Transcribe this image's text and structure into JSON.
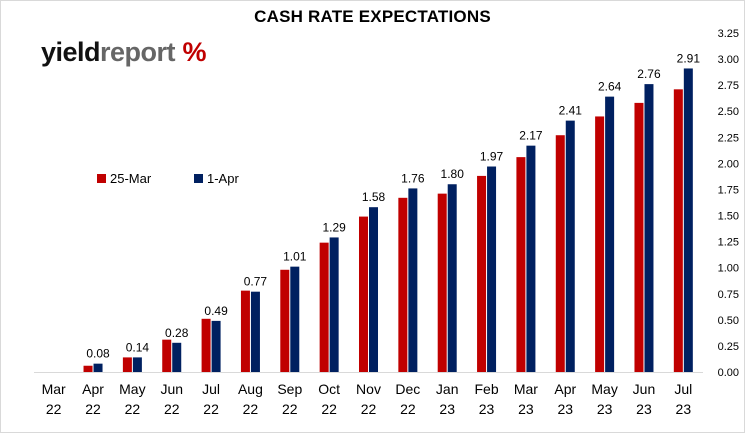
{
  "title": "CASH RATE EXPECTATIONS",
  "logo": {
    "part1": "yield",
    "part2": "report",
    "part3": " %"
  },
  "colors": {
    "series1": "#c00000",
    "series2": "#002060",
    "grid": "#d9d9d9"
  },
  "chart_data": {
    "type": "bar",
    "title": "CASH RATE EXPECTATIONS",
    "categories": [
      [
        "Mar",
        "22"
      ],
      [
        "Apr",
        "22"
      ],
      [
        "May",
        "22"
      ],
      [
        "Jun",
        "22"
      ],
      [
        "Jul",
        "22"
      ],
      [
        "Aug",
        "22"
      ],
      [
        "Sep",
        "22"
      ],
      [
        "Oct",
        "22"
      ],
      [
        "Nov",
        "22"
      ],
      [
        "Dec",
        "22"
      ],
      [
        "Jan",
        "23"
      ],
      [
        "Feb",
        "23"
      ],
      [
        "Mar",
        "23"
      ],
      [
        "Apr",
        "23"
      ],
      [
        "May",
        "23"
      ],
      [
        "Jun",
        "23"
      ],
      [
        "Jul",
        "23"
      ]
    ],
    "series": [
      {
        "name": "25-Mar",
        "values": [
          0.0,
          0.06,
          0.14,
          0.31,
          0.51,
          0.78,
          0.98,
          1.24,
          1.49,
          1.67,
          1.71,
          1.88,
          2.06,
          2.27,
          2.45,
          2.58,
          2.71
        ]
      },
      {
        "name": "1-Apr",
        "values": [
          0.0,
          0.08,
          0.14,
          0.28,
          0.49,
          0.77,
          1.01,
          1.29,
          1.58,
          1.76,
          1.8,
          1.97,
          2.17,
          2.41,
          2.64,
          2.76,
          2.91
        ]
      }
    ],
    "data_labels": [
      "",
      "0.08",
      "0.14",
      "0.28",
      "0.49",
      "0.77",
      "1.01",
      "1.29",
      "1.58",
      "1.76",
      "1.80",
      "1.97",
      "2.17",
      "2.41",
      "2.64",
      "2.76",
      "2.91"
    ],
    "yticks": [
      "0.00",
      "0.25",
      "0.50",
      "0.75",
      "1.00",
      "1.25",
      "1.50",
      "1.75",
      "2.00",
      "2.25",
      "2.50",
      "2.75",
      "3.00",
      "3.25"
    ],
    "ylim": [
      0,
      3.25
    ],
    "y_axis_position": "right",
    "grid": false,
    "legend_position": "upper-left"
  }
}
